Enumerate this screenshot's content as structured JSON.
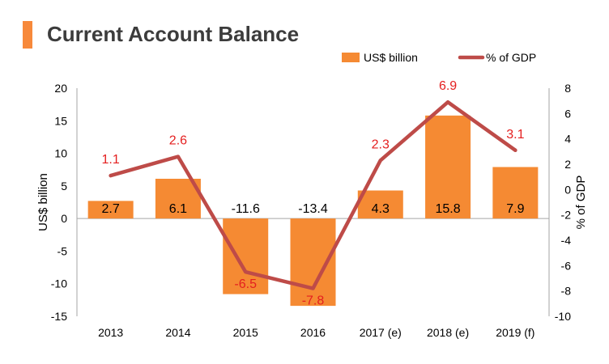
{
  "title": "Current Account Balance",
  "colors": {
    "accent": "#F7893B",
    "bar": "#F58A33",
    "line": "#BE4B48",
    "line_label": "#E41F1F",
    "title": "#3C3C3C",
    "axis": "#A6A6A6"
  },
  "chart_data": {
    "type": "bar+line",
    "categories": [
      "2013",
      "2014",
      "2015",
      "2016",
      "2017 (e)",
      "2018 (e)",
      "2019 (f)"
    ],
    "series": [
      {
        "name": "US$ billion",
        "type": "bar",
        "axis": "left",
        "values": [
          2.7,
          6.1,
          -11.6,
          -13.4,
          4.3,
          15.8,
          7.9
        ],
        "labels": [
          "2.7",
          "6.1",
          "-11.6",
          "-13.4",
          "4.3",
          "15.8",
          "7.9"
        ]
      },
      {
        "name": "% of GDP",
        "type": "line",
        "axis": "right",
        "values": [
          1.1,
          2.6,
          -6.5,
          -7.8,
          2.3,
          6.9,
          3.1
        ],
        "labels": [
          "1.1",
          "2.6",
          "-6.5",
          "-7.8",
          "2.3",
          "6.9",
          "3.1"
        ]
      }
    ],
    "y_left": {
      "label": "US$ billion",
      "range": [
        -15,
        20
      ],
      "ticks": [
        20,
        15,
        10,
        5,
        0,
        -5,
        -10,
        -15
      ],
      "tick_labels": [
        "20",
        "15",
        "10",
        "5",
        "0",
        "-5",
        "-10",
        "-15"
      ]
    },
    "y_right": {
      "label": "% of GDP",
      "range": [
        -10,
        8
      ],
      "ticks": [
        8,
        6,
        4,
        2,
        0,
        -2,
        -4,
        -6,
        -8,
        -10
      ],
      "tick_labels": [
        "8",
        "6",
        "4",
        "2",
        "0",
        "-2",
        "-4",
        "-6",
        "-8",
        "-10"
      ]
    },
    "legend": {
      "position": "top-right",
      "entries": [
        "US$ billion",
        "% of GDP"
      ]
    },
    "grid": false
  }
}
